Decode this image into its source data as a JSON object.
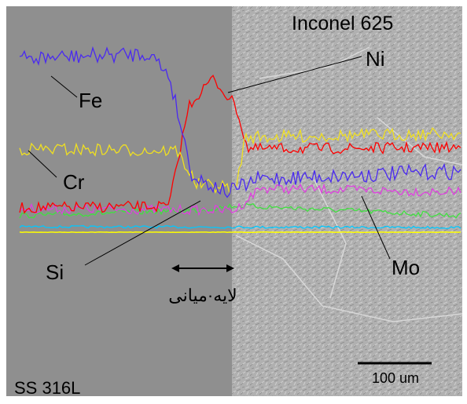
{
  "image": {
    "labels": {
      "top_right": "Inconel 625",
      "ni": "Ni",
      "fe": "Fe",
      "cr": "Cr",
      "si": "Si",
      "mo": "Mo",
      "interlayer": "لایه·میانی",
      "scale_bar": "100 um",
      "bottom_left": "SS 316L"
    }
  }
}
